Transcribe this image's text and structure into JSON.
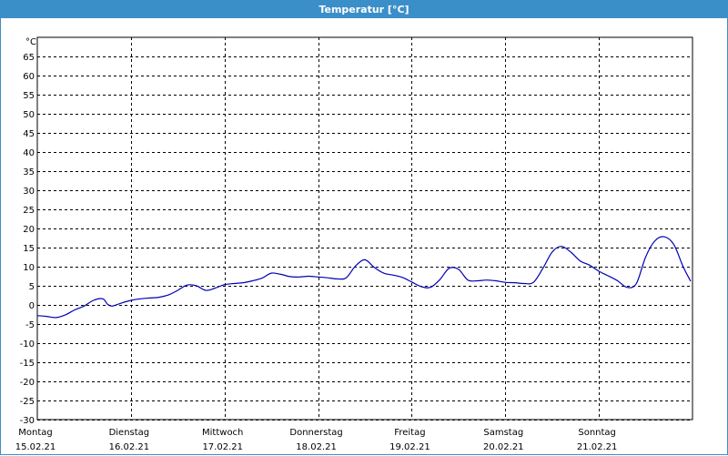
{
  "window": {
    "title": "Temperatur [°C]"
  },
  "chart_data": {
    "type": "line",
    "title": "Temperatur [°C]",
    "ylabel": "°C",
    "ylim": [
      -30,
      70
    ],
    "yticks": [
      65,
      60,
      55,
      50,
      45,
      40,
      35,
      30,
      25,
      20,
      15,
      10,
      5,
      0,
      -5,
      -10,
      -15,
      -20,
      -25,
      -30
    ],
    "xlim": [
      0,
      7
    ],
    "grid": true,
    "day_labels": [
      {
        "day": "Montag",
        "date": "15.02.21"
      },
      {
        "day": "Dienstag",
        "date": "16.02.21"
      },
      {
        "day": "Mittwoch",
        "date": "17.02.21"
      },
      {
        "day": "Donnerstag",
        "date": "18.02.21"
      },
      {
        "day": "Freitag",
        "date": "19.02.21"
      },
      {
        "day": "Samstag",
        "date": "20.02.21"
      },
      {
        "day": "Sonntag",
        "date": "21.02.21"
      }
    ],
    "series": [
      {
        "color": "#0000b4",
        "x": [
          0,
          0.1,
          0.2,
          0.3,
          0.4,
          0.5,
          0.6,
          0.7,
          0.75,
          0.8,
          0.9,
          1.0,
          1.1,
          1.2,
          1.3,
          1.4,
          1.5,
          1.6,
          1.7,
          1.8,
          1.9,
          2.0,
          2.1,
          2.2,
          2.3,
          2.4,
          2.5,
          2.6,
          2.7,
          2.8,
          2.9,
          3.0,
          3.1,
          3.2,
          3.3,
          3.4,
          3.5,
          3.6,
          3.7,
          3.8,
          3.9,
          4.0,
          4.1,
          4.2,
          4.3,
          4.4,
          4.5,
          4.6,
          4.7,
          4.8,
          4.9,
          5.0,
          5.1,
          5.2,
          5.3,
          5.4,
          5.5,
          5.6,
          5.7,
          5.8,
          5.9,
          6.0,
          6.1,
          6.2,
          6.3,
          6.4,
          6.5,
          6.6,
          6.7,
          6.8,
          6.9,
          6.98
        ],
        "values": [
          -2.8,
          -3.0,
          -3.3,
          -2.6,
          -1.3,
          -0.3,
          1.2,
          1.6,
          0.2,
          -0.3,
          0.5,
          1.2,
          1.6,
          1.8,
          2.0,
          2.6,
          3.8,
          5.2,
          5.0,
          3.8,
          4.4,
          5.3,
          5.6,
          5.8,
          6.3,
          7.0,
          8.3,
          8.0,
          7.4,
          7.3,
          7.5,
          7.3,
          7.1,
          6.8,
          7.1,
          10.2,
          11.8,
          9.8,
          8.3,
          7.8,
          7.2,
          6.0,
          4.8,
          4.6,
          6.6,
          9.6,
          9.3,
          6.5,
          6.3,
          6.5,
          6.3,
          5.9,
          5.8,
          5.6,
          5.9,
          9.5,
          13.8,
          15.3,
          13.8,
          11.5,
          10.4,
          8.8,
          7.6,
          6.3,
          4.6,
          5.6,
          12.6,
          16.8,
          17.8,
          15.8,
          10.0,
          6.2
        ]
      }
    ]
  }
}
